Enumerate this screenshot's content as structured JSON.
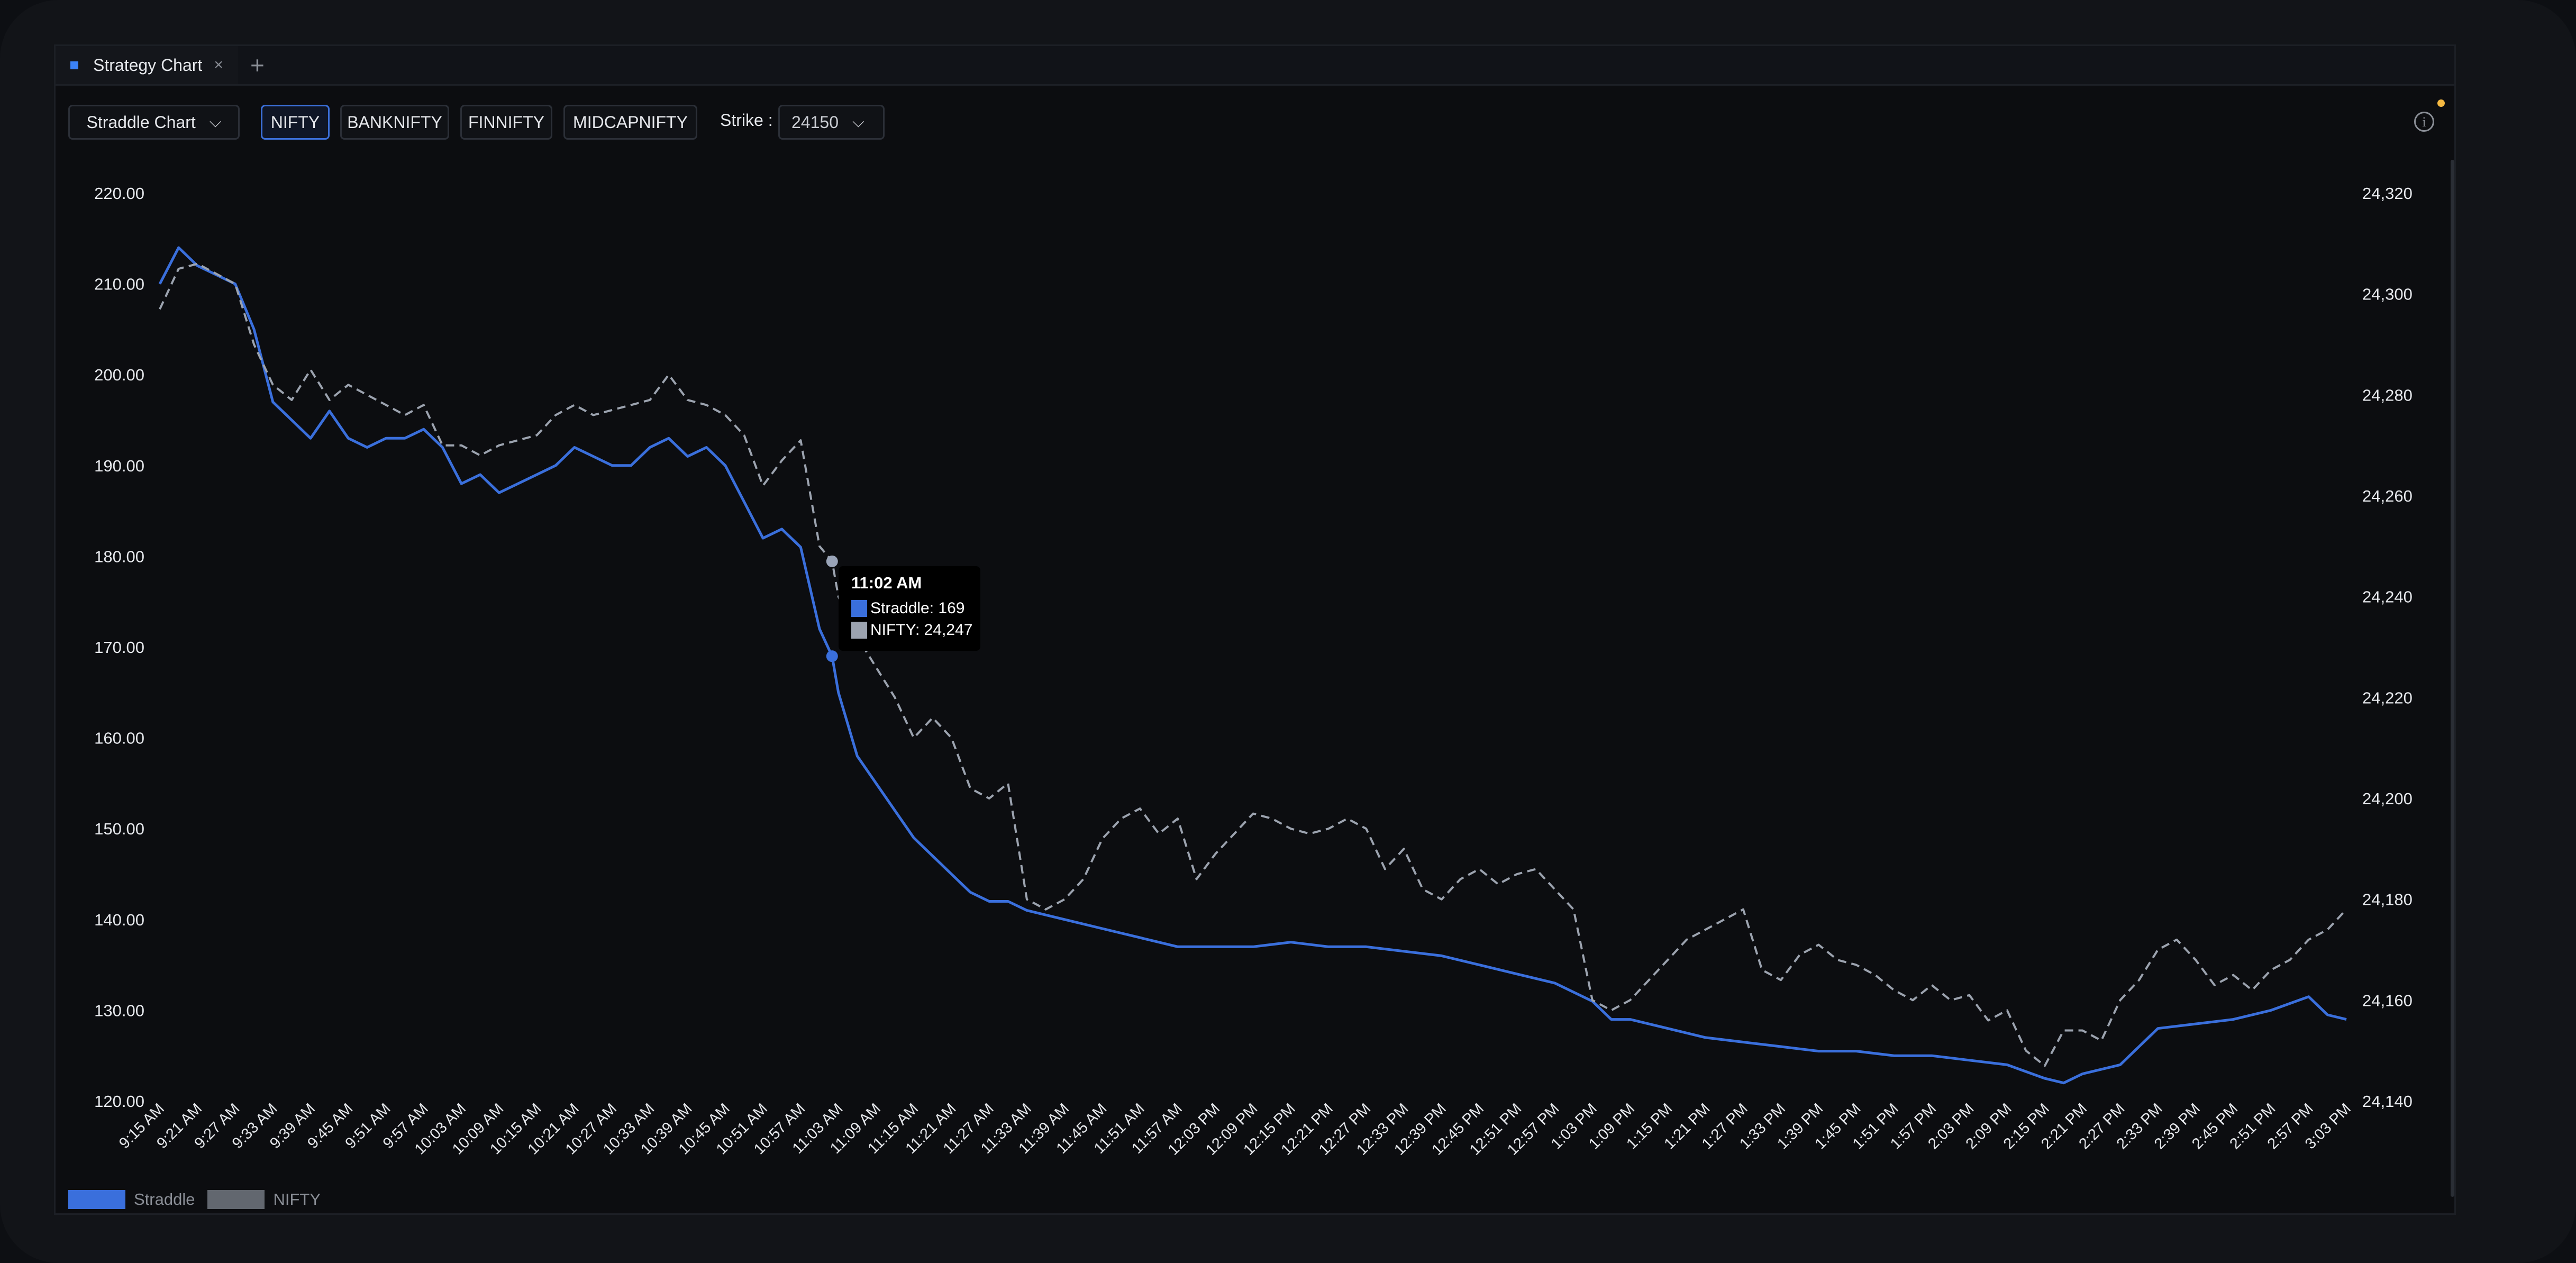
{
  "tab": {
    "label": "Strategy Chart",
    "close": "×",
    "add": "+"
  },
  "toolbar": {
    "chart_type": "Straddle Chart",
    "indices": [
      "NIFTY",
      "BANKNIFTY",
      "FINNIFTY",
      "MIDCAPNIFTY"
    ],
    "active_index": "NIFTY",
    "strike_label": "Strike :",
    "strike_value": "24150",
    "info_icon": "i"
  },
  "tooltip": {
    "time": "11:02 AM",
    "straddle": "Straddle: 169",
    "nifty": "NIFTY: 24,247"
  },
  "legend": {
    "straddle": "Straddle",
    "nifty": "NIFTY"
  },
  "colors": {
    "straddle": "#3a6fdc",
    "nifty": "#9ca3af",
    "accent_dot": "#f5b942"
  },
  "chart_data": {
    "type": "line",
    "x_tick_labels": [
      "9:15 AM",
      "9:21 AM",
      "9:27 AM",
      "9:33 AM",
      "9:39 AM",
      "9:45 AM",
      "9:51 AM",
      "9:57 AM",
      "10:03 AM",
      "10:09 AM",
      "10:15 AM",
      "10:21 AM",
      "10:27 AM",
      "10:33 AM",
      "10:39 AM",
      "10:45 AM",
      "10:51 AM",
      "10:57 AM",
      "11:03 AM",
      "11:09 AM",
      "11:15 AM",
      "11:21 AM",
      "11:27 AM",
      "11:33 AM",
      "11:39 AM",
      "11:45 AM",
      "11:51 AM",
      "11:57 AM",
      "12:03 PM",
      "12:09 PM",
      "12:15 PM",
      "12:21 PM",
      "12:27 PM",
      "12:33 PM",
      "12:39 PM",
      "12:45 PM",
      "12:51 PM",
      "12:57 PM",
      "1:03 PM",
      "1:09 PM",
      "1:15 PM",
      "1:21 PM",
      "1:27 PM",
      "1:33 PM",
      "1:39 PM",
      "1:45 PM",
      "1:51 PM",
      "1:57 PM",
      "2:03 PM",
      "2:09 PM",
      "2:15 PM",
      "2:21 PM",
      "2:27 PM",
      "2:33 PM",
      "2:39 PM",
      "2:45 PM",
      "2:51 PM",
      "2:57 PM",
      "3:03 PM"
    ],
    "y_left_ticks": [
      "220.00",
      "210.00",
      "200.00",
      "190.00",
      "180.00",
      "170.00",
      "160.00",
      "150.00",
      "140.00",
      "130.00",
      "120.00"
    ],
    "y_left_range": [
      120,
      220
    ],
    "y_right_ticks": [
      "24,320",
      "24,300",
      "24,280",
      "24,260",
      "24,240",
      "24,220",
      "24,200",
      "24,180",
      "24,160",
      "24,140"
    ],
    "y_right_range": [
      24140,
      24320
    ],
    "series": [
      {
        "name": "Straddle",
        "axis": "left",
        "style": "solid",
        "points": [
          [
            "9:15 AM",
            210
          ],
          [
            "9:18 AM",
            214
          ],
          [
            "9:21 AM",
            212
          ],
          [
            "9:24 AM",
            211
          ],
          [
            "9:27 AM",
            210
          ],
          [
            "9:30 AM",
            205
          ],
          [
            "9:33 AM",
            197
          ],
          [
            "9:36 AM",
            195
          ],
          [
            "9:39 AM",
            193
          ],
          [
            "9:42 AM",
            196
          ],
          [
            "9:45 AM",
            193
          ],
          [
            "9:48 AM",
            192
          ],
          [
            "9:51 AM",
            193
          ],
          [
            "9:54 AM",
            193
          ],
          [
            "9:57 AM",
            194
          ],
          [
            "10:00 AM",
            192
          ],
          [
            "10:03 AM",
            188
          ],
          [
            "10:06 AM",
            189
          ],
          [
            "10:09 AM",
            187
          ],
          [
            "10:12 AM",
            188
          ],
          [
            "10:15 AM",
            189
          ],
          [
            "10:18 AM",
            190
          ],
          [
            "10:21 AM",
            192
          ],
          [
            "10:24 AM",
            191
          ],
          [
            "10:27 AM",
            190
          ],
          [
            "10:30 AM",
            190
          ],
          [
            "10:33 AM",
            192
          ],
          [
            "10:36 AM",
            193
          ],
          [
            "10:39 AM",
            191
          ],
          [
            "10:42 AM",
            192
          ],
          [
            "10:45 AM",
            190
          ],
          [
            "10:48 AM",
            186
          ],
          [
            "10:51 AM",
            182
          ],
          [
            "10:54 AM",
            183
          ],
          [
            "10:57 AM",
            181
          ],
          [
            "11:00 AM",
            172
          ],
          [
            "11:02 AM",
            169
          ],
          [
            "11:03 AM",
            165
          ],
          [
            "11:06 AM",
            158
          ],
          [
            "11:09 AM",
            155
          ],
          [
            "11:12 AM",
            152
          ],
          [
            "11:15 AM",
            149
          ],
          [
            "11:18 AM",
            147
          ],
          [
            "11:21 AM",
            145
          ],
          [
            "11:24 AM",
            143
          ],
          [
            "11:27 AM",
            142
          ],
          [
            "11:30 AM",
            142
          ],
          [
            "11:33 AM",
            141
          ],
          [
            "11:39 AM",
            140
          ],
          [
            "11:45 AM",
            139
          ],
          [
            "11:51 AM",
            138
          ],
          [
            "11:57 AM",
            137
          ],
          [
            "12:03 PM",
            137
          ],
          [
            "12:09 PM",
            137
          ],
          [
            "12:15 PM",
            137.5
          ],
          [
            "12:21 PM",
            137
          ],
          [
            "12:27 PM",
            137
          ],
          [
            "12:33 PM",
            136.5
          ],
          [
            "12:39 PM",
            136
          ],
          [
            "12:45 PM",
            135
          ],
          [
            "12:51 PM",
            134
          ],
          [
            "12:57 PM",
            133
          ],
          [
            "1:03 PM",
            131
          ],
          [
            "1:06 PM",
            129
          ],
          [
            "1:09 PM",
            129
          ],
          [
            "1:15 PM",
            128
          ],
          [
            "1:21 PM",
            127
          ],
          [
            "1:27 PM",
            126.5
          ],
          [
            "1:33 PM",
            126
          ],
          [
            "1:39 PM",
            125.5
          ],
          [
            "1:45 PM",
            125.5
          ],
          [
            "1:51 PM",
            125
          ],
          [
            "1:57 PM",
            125
          ],
          [
            "2:03 PM",
            124.5
          ],
          [
            "2:09 PM",
            124
          ],
          [
            "2:15 PM",
            122.5
          ],
          [
            "2:18 PM",
            122
          ],
          [
            "2:21 PM",
            123
          ],
          [
            "2:27 PM",
            124
          ],
          [
            "2:30 PM",
            126
          ],
          [
            "2:33 PM",
            128
          ],
          [
            "2:39 PM",
            128.5
          ],
          [
            "2:45 PM",
            129
          ],
          [
            "2:51 PM",
            130
          ],
          [
            "2:57 PM",
            131.5
          ],
          [
            "3:00 PM",
            129.5
          ],
          [
            "3:03 PM",
            129
          ]
        ]
      },
      {
        "name": "NIFTY",
        "axis": "right",
        "style": "dashed",
        "points": [
          [
            "9:15 AM",
            24297
          ],
          [
            "9:18 AM",
            24305
          ],
          [
            "9:21 AM",
            24306
          ],
          [
            "9:24 AM",
            24304
          ],
          [
            "9:27 AM",
            24302
          ],
          [
            "9:30 AM",
            24290
          ],
          [
            "9:33 AM",
            24282
          ],
          [
            "9:36 AM",
            24279
          ],
          [
            "9:39 AM",
            24285
          ],
          [
            "9:42 AM",
            24279
          ],
          [
            "9:45 AM",
            24282
          ],
          [
            "9:48 AM",
            24280
          ],
          [
            "9:51 AM",
            24278
          ],
          [
            "9:54 AM",
            24276
          ],
          [
            "9:57 AM",
            24278
          ],
          [
            "10:00 AM",
            24270
          ],
          [
            "10:03 AM",
            24270
          ],
          [
            "10:06 AM",
            24268
          ],
          [
            "10:09 AM",
            24270
          ],
          [
            "10:12 AM",
            24271
          ],
          [
            "10:15 AM",
            24272
          ],
          [
            "10:18 AM",
            24276
          ],
          [
            "10:21 AM",
            24278
          ],
          [
            "10:24 AM",
            24276
          ],
          [
            "10:27 AM",
            24277
          ],
          [
            "10:30 AM",
            24278
          ],
          [
            "10:33 AM",
            24279
          ],
          [
            "10:36 AM",
            24284
          ],
          [
            "10:39 AM",
            24279
          ],
          [
            "10:42 AM",
            24278
          ],
          [
            "10:45 AM",
            24276
          ],
          [
            "10:48 AM",
            24272
          ],
          [
            "10:51 AM",
            24262
          ],
          [
            "10:54 AM",
            24267
          ],
          [
            "10:57 AM",
            24271
          ],
          [
            "11:00 AM",
            24250
          ],
          [
            "11:02 AM",
            24247
          ],
          [
            "11:03 AM",
            24240
          ],
          [
            "11:06 AM",
            24232
          ],
          [
            "11:09 AM",
            24226
          ],
          [
            "11:12 AM",
            24220
          ],
          [
            "11:15 AM",
            24212
          ],
          [
            "11:18 AM",
            24216
          ],
          [
            "11:21 AM",
            24212
          ],
          [
            "11:24 AM",
            24202
          ],
          [
            "11:27 AM",
            24200
          ],
          [
            "11:30 AM",
            24203
          ],
          [
            "11:33 AM",
            24180
          ],
          [
            "11:36 AM",
            24178
          ],
          [
            "11:39 AM",
            24180
          ],
          [
            "11:42 AM",
            24184
          ],
          [
            "11:45 AM",
            24192
          ],
          [
            "11:48 AM",
            24196
          ],
          [
            "11:51 AM",
            24198
          ],
          [
            "11:54 AM",
            24193
          ],
          [
            "11:57 AM",
            24196
          ],
          [
            "12:00 PM",
            24184
          ],
          [
            "12:03 PM",
            24189
          ],
          [
            "12:06 PM",
            24193
          ],
          [
            "12:09 PM",
            24197
          ],
          [
            "12:12 PM",
            24196
          ],
          [
            "12:15 PM",
            24194
          ],
          [
            "12:18 PM",
            24193
          ],
          [
            "12:21 PM",
            24194
          ],
          [
            "12:24 PM",
            24196
          ],
          [
            "12:27 PM",
            24194
          ],
          [
            "12:30 PM",
            24186
          ],
          [
            "12:33 PM",
            24190
          ],
          [
            "12:36 PM",
            24182
          ],
          [
            "12:39 PM",
            24180
          ],
          [
            "12:42 PM",
            24184
          ],
          [
            "12:45 PM",
            24186
          ],
          [
            "12:48 PM",
            24183
          ],
          [
            "12:51 PM",
            24185
          ],
          [
            "12:54 PM",
            24186
          ],
          [
            "12:57 PM",
            24182
          ],
          [
            "1:00 PM",
            24178
          ],
          [
            "1:03 PM",
            24160
          ],
          [
            "1:06 PM",
            24158
          ],
          [
            "1:09 PM",
            24160
          ],
          [
            "1:12 PM",
            24164
          ],
          [
            "1:15 PM",
            24168
          ],
          [
            "1:18 PM",
            24172
          ],
          [
            "1:21 PM",
            24174
          ],
          [
            "1:24 PM",
            24176
          ],
          [
            "1:27 PM",
            24178
          ],
          [
            "1:30 PM",
            24166
          ],
          [
            "1:33 PM",
            24164
          ],
          [
            "1:36 PM",
            24169
          ],
          [
            "1:39 PM",
            24171
          ],
          [
            "1:42 PM",
            24168
          ],
          [
            "1:45 PM",
            24167
          ],
          [
            "1:48 PM",
            24165
          ],
          [
            "1:51 PM",
            24162
          ],
          [
            "1:54 PM",
            24160
          ],
          [
            "1:57 PM",
            24163
          ],
          [
            "2:00 PM",
            24160
          ],
          [
            "2:03 PM",
            24161
          ],
          [
            "2:06 PM",
            24156
          ],
          [
            "2:09 PM",
            24158
          ],
          [
            "2:12 PM",
            24150
          ],
          [
            "2:15 PM",
            24147
          ],
          [
            "2:18 PM",
            24154
          ],
          [
            "2:21 PM",
            24154
          ],
          [
            "2:24 PM",
            24152
          ],
          [
            "2:27 PM",
            24160
          ],
          [
            "2:30 PM",
            24164
          ],
          [
            "2:33 PM",
            24170
          ],
          [
            "2:36 PM",
            24172
          ],
          [
            "2:39 PM",
            24168
          ],
          [
            "2:42 PM",
            24163
          ],
          [
            "2:45 PM",
            24165
          ],
          [
            "2:48 PM",
            24162
          ],
          [
            "2:51 PM",
            24166
          ],
          [
            "2:54 PM",
            24168
          ],
          [
            "2:57 PM",
            24172
          ],
          [
            "3:00 PM",
            24174
          ],
          [
            "3:03 PM",
            24178
          ]
        ]
      }
    ],
    "grid": false,
    "legend_position": "bottom-left",
    "hover_time": "11:02 AM"
  }
}
